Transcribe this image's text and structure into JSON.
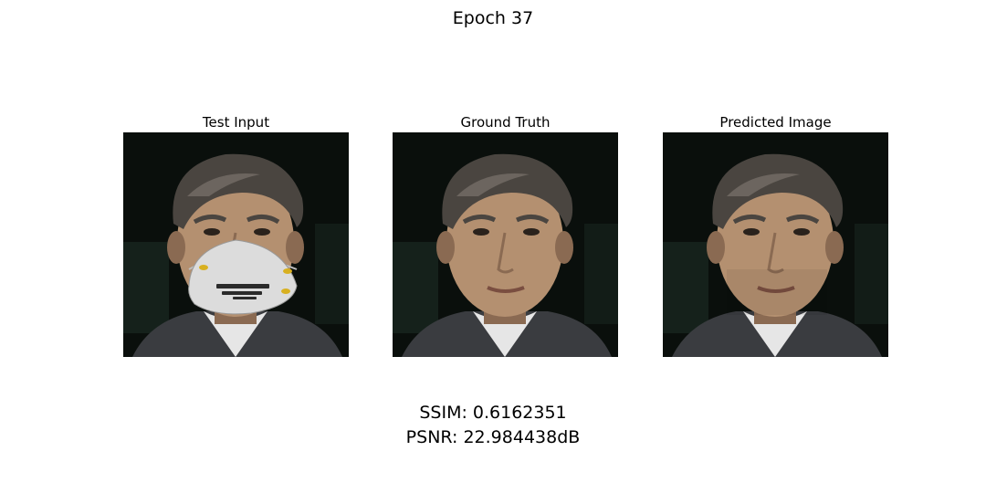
{
  "chart_data": {
    "type": "image_grid",
    "title": "Epoch 37",
    "panels": [
      {
        "title": "Test Input",
        "variant": "masked"
      },
      {
        "title": "Ground Truth",
        "variant": "clean"
      },
      {
        "title": "Predicted Image",
        "variant": "predicted"
      }
    ],
    "metrics": {
      "ssim_text": "SSIM: 0.6162351",
      "psnr_text": "PSNR: 22.984438dB",
      "ssim": 0.6162351,
      "psnr_db": 22.984438
    }
  },
  "colors": {
    "background": "#0a0f0c",
    "background_green": "#1a2a22",
    "skin": "#b49070",
    "skin_shadow": "#8a6a52",
    "hair": "#4a4540",
    "hair_light": "#7a746c",
    "jacket": "#3a3c40",
    "shirt": "#e6e6e6",
    "mask": "#dcdcdc",
    "mask_print": "#2b2b2b",
    "mask_strap": "#d8b020"
  }
}
